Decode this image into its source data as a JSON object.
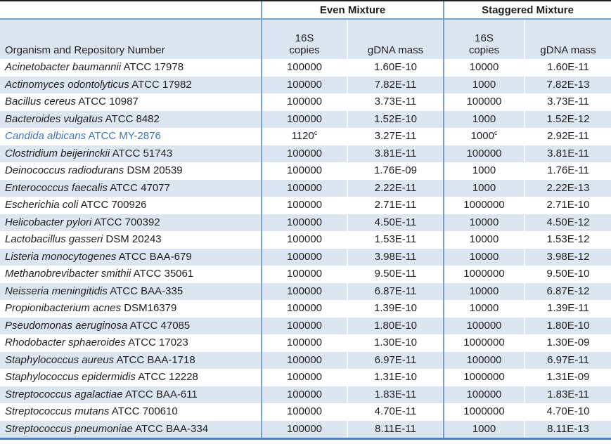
{
  "table": {
    "header": {
      "even_mixture": "Even Mixture",
      "staggered_mixture": "Staggered Mixture",
      "organism_column": "Organism and Repository Number",
      "copies_line1": "16S",
      "copies_line2": "copies",
      "gdna_mass": "gDNA mass"
    },
    "colors": {
      "stripe": "#dce6f1",
      "inner_border_blue": "#76a2d4",
      "bottom_border_blue": "#4f81bd",
      "top_border_dark": "#1f1f1f",
      "highlight_organism_text": "#4076b4"
    },
    "rows": [
      {
        "name": "Acinetobacter baumannii",
        "id": "ATCC 17978",
        "even_copies": "100000",
        "even_gdna": "1.60E-10",
        "stag_copies": "10000",
        "stag_gdna": "1.60E-11"
      },
      {
        "name": "Actinomyces odontolyticus",
        "id": "ATCC 17982",
        "even_copies": "100000",
        "even_gdna": "7.82E-11",
        "stag_copies": "1000",
        "stag_gdna": "7.82E-13"
      },
      {
        "name": "Bacillus cereus",
        "id": "ATCC 10987",
        "even_copies": "100000",
        "even_gdna": "3.73E-11",
        "stag_copies": "100000",
        "stag_gdna": "3.73E-11"
      },
      {
        "name": "Bacteroides vulgatus",
        "id": "ATCC 8482",
        "even_copies": "100000",
        "even_gdna": "1.52E-10",
        "stag_copies": "1000",
        "stag_gdna": "1.52E-12"
      },
      {
        "name": "Candida albicans",
        "id": "ATCC MY-2876",
        "even_copies": "1120",
        "even_copies_sup": "c",
        "even_gdna": "3.27E-11",
        "stag_copies": "1000",
        "stag_copies_sup": "c",
        "stag_gdna": "2.92E-11",
        "highlight": true
      },
      {
        "name": "Clostridium beijerinckii",
        "id": "ATCC 51743",
        "even_copies": "100000",
        "even_gdna": "3.81E-11",
        "stag_copies": "100000",
        "stag_gdna": "3.81E-11"
      },
      {
        "name": "Deinococcus radiodurans",
        "id": "DSM 20539",
        "even_copies": "100000",
        "even_gdna": "1.76E-09",
        "stag_copies": "1000",
        "stag_gdna": "1.76E-11"
      },
      {
        "name": "Enterococcus faecalis",
        "id": "ATCC 47077",
        "even_copies": "100000",
        "even_gdna": "2.22E-11",
        "stag_copies": "1000",
        "stag_gdna": "2.22E-13"
      },
      {
        "name": "Escherichia coli",
        "id": "ATCC 700926",
        "even_copies": "100000",
        "even_gdna": "2.71E-11",
        "stag_copies": "1000000",
        "stag_gdna": "2.71E-10"
      },
      {
        "name": "Helicobacter pylori",
        "id": "ATCC 700392",
        "even_copies": "100000",
        "even_gdna": "4.50E-11",
        "stag_copies": "10000",
        "stag_gdna": "4.50E-12"
      },
      {
        "name": "Lactobacillus gasseri",
        "id": "DSM 20243",
        "even_copies": "100000",
        "even_gdna": "1.53E-11",
        "stag_copies": "10000",
        "stag_gdna": "1.53E-12"
      },
      {
        "name": "Listeria monocytogenes",
        "id": "ATCC BAA-679",
        "even_copies": "100000",
        "even_gdna": "3.98E-11",
        "stag_copies": "10000",
        "stag_gdna": "3.98E-12"
      },
      {
        "name": "Methanobrevibacter smithii",
        "id": "ATCC 35061",
        "even_copies": "100000",
        "even_gdna": "9.50E-11",
        "stag_copies": "1000000",
        "stag_gdna": "9.50E-10"
      },
      {
        "name": "Neisseria meningitidis",
        "id": "ATCC BAA-335",
        "even_copies": "100000",
        "even_gdna": "6.87E-11",
        "stag_copies": "10000",
        "stag_gdna": "6.87E-12"
      },
      {
        "name": "Propionibacterium acnes",
        "id": "DSM16379",
        "even_copies": "100000",
        "even_gdna": "1.39E-10",
        "stag_copies": "10000",
        "stag_gdna": "1.39E-11"
      },
      {
        "name": "Pseudomonas aeruginosa",
        "id": "ATCC 47085",
        "even_copies": "100000",
        "even_gdna": "1.80E-10",
        "stag_copies": "100000",
        "stag_gdna": "1.80E-10"
      },
      {
        "name": "Rhodobacter sphaeroides",
        "id": "ATCC 17023",
        "even_copies": "100000",
        "even_gdna": "1.30E-10",
        "stag_copies": "1000000",
        "stag_gdna": "1.30E-09"
      },
      {
        "name": "Staphylococcus aureus",
        "id": "ATCC BAA-1718",
        "even_copies": "100000",
        "even_gdna": "6.97E-11",
        "stag_copies": "100000",
        "stag_gdna": "6.97E-11"
      },
      {
        "name": "Staphylococcus epidermidis",
        "id": "ATCC 12228",
        "even_copies": "100000",
        "even_gdna": "1.31E-10",
        "stag_copies": "1000000",
        "stag_gdna": "1.31E-09"
      },
      {
        "name": "Streptococcus agalactiae",
        "id": "ATCC BAA-611",
        "even_copies": "100000",
        "even_gdna": "1.83E-11",
        "stag_copies": "100000",
        "stag_gdna": "1.83E-11"
      },
      {
        "name": "Streptococcus mutans",
        "id": "ATCC 700610",
        "even_copies": "100000",
        "even_gdna": "4.70E-11",
        "stag_copies": "1000000",
        "stag_gdna": "4.70E-10"
      },
      {
        "name": "Streptococcus pneumoniae",
        "id": "ATCC BAA-334",
        "even_copies": "100000",
        "even_gdna": "8.11E-11",
        "stag_copies": "1000",
        "stag_gdna": "8.11E-13"
      }
    ]
  }
}
